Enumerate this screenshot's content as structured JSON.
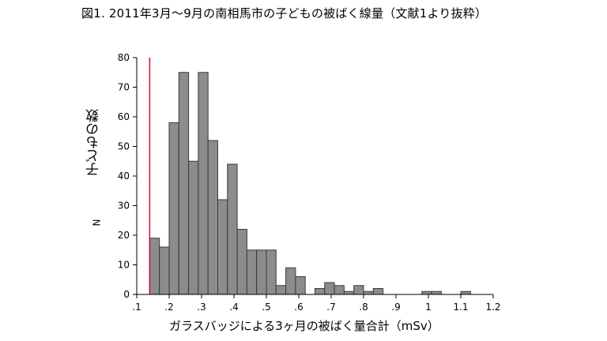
{
  "figure": {
    "title": "図1. 2011年3月～9月の南相馬市の子どもの被ばく線量（文献1より抜粋）"
  },
  "chart_data": {
    "type": "bar",
    "title": "図1. 2011年3月～9月の南相馬市の子どもの被ばく線量（文献1より抜粋）",
    "ylabel": "子どもの数",
    "ylabel_secondary": "N",
    "xlabel": "ガラスバッジによる3ヶ月の被ばく量合計（mSv）",
    "xlim": [
      0.1,
      1.2
    ],
    "ylim": [
      0,
      80
    ],
    "x_ticks": [
      0.1,
      0.2,
      0.3,
      0.4,
      0.5,
      0.6,
      0.7,
      0.8,
      0.9,
      1.0,
      1.1,
      1.2
    ],
    "x_tick_labels": [
      ".1",
      ".2",
      ".3",
      ".4",
      ".5",
      ".6",
      ".7",
      ".8",
      ".9",
      "1",
      "1.1",
      "1.2"
    ],
    "y_ticks": [
      0,
      10,
      20,
      30,
      40,
      50,
      60,
      70,
      80
    ],
    "y_tick_labels": [
      "0",
      "10",
      "20",
      "30",
      "40",
      "50",
      "60",
      "70",
      "80"
    ],
    "bin_width": 0.03,
    "bins": [
      {
        "x0": 0.14,
        "value": 19
      },
      {
        "x0": 0.17,
        "value": 16
      },
      {
        "x0": 0.2,
        "value": 58
      },
      {
        "x0": 0.23,
        "value": 75
      },
      {
        "x0": 0.26,
        "value": 45
      },
      {
        "x0": 0.29,
        "value": 75
      },
      {
        "x0": 0.32,
        "value": 52
      },
      {
        "x0": 0.35,
        "value": 32
      },
      {
        "x0": 0.38,
        "value": 44
      },
      {
        "x0": 0.41,
        "value": 22
      },
      {
        "x0": 0.44,
        "value": 15
      },
      {
        "x0": 0.47,
        "value": 15
      },
      {
        "x0": 0.5,
        "value": 15
      },
      {
        "x0": 0.53,
        "value": 3
      },
      {
        "x0": 0.56,
        "value": 9
      },
      {
        "x0": 0.59,
        "value": 6
      },
      {
        "x0": 0.62,
        "value": 0
      },
      {
        "x0": 0.65,
        "value": 2
      },
      {
        "x0": 0.68,
        "value": 4
      },
      {
        "x0": 0.71,
        "value": 3
      },
      {
        "x0": 0.74,
        "value": 1
      },
      {
        "x0": 0.77,
        "value": 3
      },
      {
        "x0": 0.8,
        "value": 1
      },
      {
        "x0": 0.83,
        "value": 2
      },
      {
        "x0": 0.86,
        "value": 0
      },
      {
        "x0": 0.89,
        "value": 0
      },
      {
        "x0": 0.92,
        "value": 0
      },
      {
        "x0": 0.95,
        "value": 0
      },
      {
        "x0": 0.98,
        "value": 1
      },
      {
        "x0": 1.01,
        "value": 1
      },
      {
        "x0": 1.04,
        "value": 0
      },
      {
        "x0": 1.07,
        "value": 0
      },
      {
        "x0": 1.1,
        "value": 1
      }
    ],
    "reference_line": {
      "x": 0.14,
      "color": "#c8102e"
    },
    "bar_color": "#8c8c8c",
    "bar_edge_color": "#3a3a3a",
    "grid": false,
    "legend": "none"
  }
}
